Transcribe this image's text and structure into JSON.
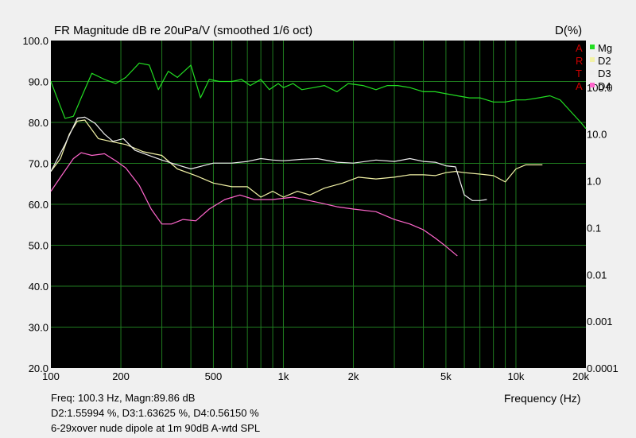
{
  "header": {
    "title": "FR Magnitude dB re 20uPa/V (smoothed 1/6 oct)",
    "right_axis_title": "D(%)"
  },
  "footer": {
    "readout_line1": "Freq: 100.3 Hz, Magn:89.86 dB",
    "readout_line2": "D2:1.55994 %, D3:1.63625 %, D4:0.56150 %",
    "caption": "6-29xover nude dipole at 1m 90dB A-wtd SPL",
    "xlabel": "Frequency (Hz)"
  },
  "watermark": [
    "A",
    "R",
    "T",
    "A"
  ],
  "colors": {
    "background": "#000000",
    "grid": "#1f7a1f",
    "Mg": "#22dd22",
    "D2": "#f2f2a6",
    "D3": "#eeeeee",
    "D4": "#ff66cc"
  },
  "chart_data": {
    "type": "line",
    "title": "FR Magnitude dB re 20uPa/V (smoothed 1/6 oct)",
    "xlabel": "Frequency (Hz)",
    "ylabel": "",
    "y2label": "D(%)",
    "xscale": "log",
    "xlim": [
      100,
      20000
    ],
    "ylim": [
      20,
      100
    ],
    "y2scale": "log",
    "y2lim": [
      0.0001,
      1000
    ],
    "grid": true,
    "legend_position": "top-right",
    "x_ticks": [
      100,
      200,
      500,
      1000,
      2000,
      5000,
      10000,
      20000
    ],
    "x_tick_labels": [
      "100",
      "200",
      "500",
      "1k",
      "2k",
      "5k",
      "10k",
      "20k"
    ],
    "y_ticks": [
      20,
      30,
      40,
      50,
      60,
      70,
      80,
      90,
      100
    ],
    "y_tick_labels": [
      "20.0",
      "30.0",
      "40.0",
      "50.0",
      "60.0",
      "70.0",
      "80.0",
      "90.0",
      "100.0"
    ],
    "y2_ticks": [
      0.0001,
      0.001,
      0.01,
      0.1,
      1,
      10,
      100
    ],
    "y2_tick_labels": [
      "0.0001",
      "0.001",
      "0.01",
      "0.1",
      "1.0",
      "10.0",
      "100.0"
    ],
    "series": [
      {
        "name": "Mg",
        "axis": "left",
        "x": [
          100,
          108,
          115,
          125,
          135,
          150,
          170,
          190,
          210,
          240,
          265,
          290,
          320,
          350,
          400,
          440,
          480,
          530,
          600,
          660,
          720,
          800,
          870,
          950,
          1000,
          1100,
          1200,
          1350,
          1500,
          1700,
          1900,
          2200,
          2500,
          2800,
          3100,
          3500,
          4000,
          4500,
          5000,
          5600,
          6300,
          7000,
          8000,
          9000,
          10000,
          11000,
          12500,
          14000,
          15500,
          17000,
          19000,
          20000
        ],
        "y": [
          90,
          85,
          81,
          81.5,
          86,
          92,
          90.5,
          89.5,
          91,
          94.5,
          94,
          88,
          92.5,
          91,
          94,
          86,
          90.5,
          90,
          90,
          90.5,
          89,
          90.5,
          88,
          89.5,
          88.5,
          89.5,
          88,
          88.5,
          89,
          87.5,
          89.5,
          89,
          88,
          89,
          89,
          88.5,
          87.5,
          87.5,
          87,
          86.5,
          86,
          86,
          85,
          85,
          85.5,
          85.5,
          86,
          86.5,
          85.5,
          83,
          80,
          78.5
        ]
      },
      {
        "name": "D2",
        "axis": "right",
        "x": [
          100,
          110,
          120,
          130,
          140,
          160,
          180,
          210,
          250,
          300,
          350,
          420,
          500,
          600,
          700,
          800,
          900,
          1000,
          1150,
          1300,
          1500,
          1800,
          2100,
          2500,
          3000,
          3500,
          4000,
          4500,
          5000,
          5500,
          6000,
          7000,
          8000,
          9000,
          10000,
          11000,
          12000,
          13000
        ],
        "y": [
          1.6,
          3.0,
          10.0,
          19.0,
          20.0,
          8.0,
          7.0,
          6.0,
          4.2,
          3.5,
          1.8,
          1.3,
          0.9,
          0.75,
          0.75,
          0.45,
          0.6,
          0.45,
          0.6,
          0.5,
          0.7,
          0.9,
          1.2,
          1.1,
          1.2,
          1.35,
          1.35,
          1.3,
          1.5,
          1.6,
          1.5,
          1.4,
          1.3,
          0.95,
          1.8,
          2.2,
          2.2,
          2.2
        ]
      },
      {
        "name": "D3",
        "axis": "right",
        "x": [
          100,
          115,
          130,
          140,
          155,
          170,
          185,
          205,
          230,
          260,
          300,
          350,
          400,
          500,
          600,
          700,
          800,
          900,
          1000,
          1200,
          1400,
          1700,
          2000,
          2500,
          3000,
          3500,
          4000,
          4500,
          5000,
          5500,
          6000,
          6500,
          7000,
          7500
        ],
        "y": [
          1.6,
          6.0,
          22.0,
          23.0,
          17.0,
          10.0,
          7.0,
          8.0,
          4.5,
          3.6,
          2.8,
          2.2,
          1.8,
          2.4,
          2.4,
          2.6,
          3.0,
          2.8,
          2.7,
          2.9,
          3.0,
          2.5,
          2.4,
          2.8,
          2.6,
          3.0,
          2.6,
          2.5,
          2.1,
          2.0,
          0.5,
          0.38,
          0.38,
          0.4
        ]
      },
      {
        "name": "D4",
        "axis": "right",
        "x": [
          100,
          110,
          125,
          135,
          150,
          170,
          190,
          210,
          240,
          270,
          300,
          330,
          370,
          420,
          480,
          560,
          650,
          750,
          900,
          1100,
          1400,
          1700,
          2000,
          2500,
          3000,
          3500,
          4000,
          4500,
          5000,
          5600
        ],
        "y": [
          0.6,
          1.2,
          3.0,
          4.0,
          3.5,
          3.8,
          2.7,
          1.9,
          0.8,
          0.25,
          0.12,
          0.12,
          0.15,
          0.14,
          0.25,
          0.4,
          0.5,
          0.4,
          0.4,
          0.45,
          0.35,
          0.28,
          0.25,
          0.22,
          0.15,
          0.12,
          0.09,
          0.06,
          0.04,
          0.025
        ]
      }
    ]
  }
}
